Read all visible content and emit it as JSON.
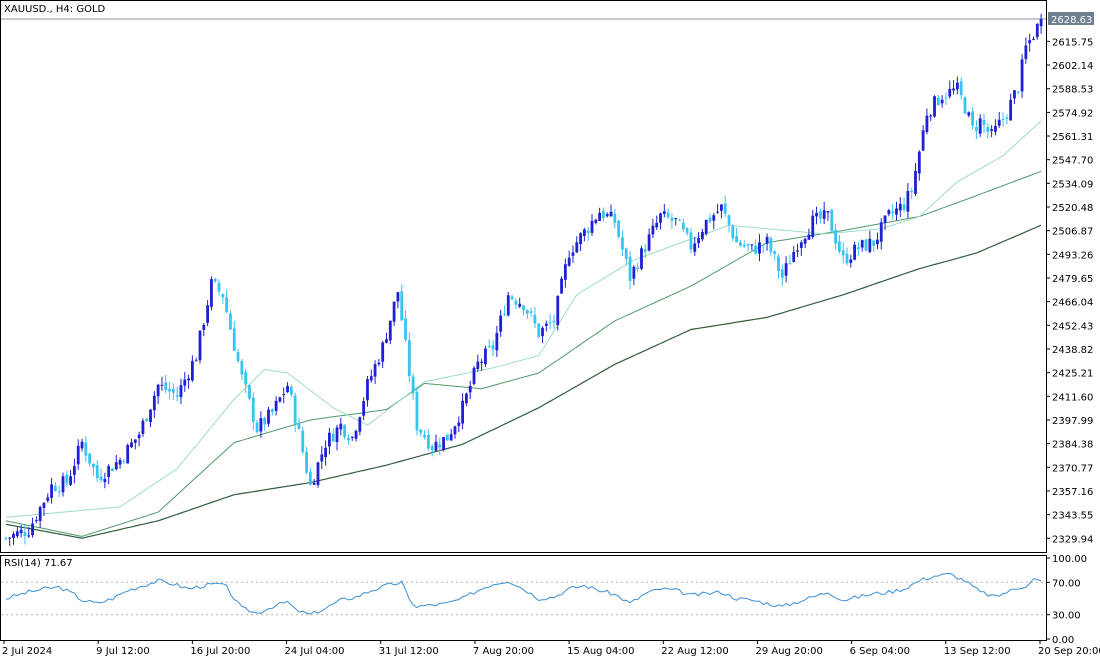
{
  "header": {
    "title": "XAUUSD., H4:  GOLD"
  },
  "price_panel": {
    "current_price_label": "2628.63"
  },
  "rsi_panel": {
    "label": "RSI(14) 71.67"
  },
  "colors": {
    "bull_candle": "#1f1fd4",
    "bear_candle": "#36c5f0",
    "ma_fast": "#9edcc0",
    "ma_mid": "#4f9a6a",
    "ma_slow": "#2f5d3d",
    "rsi_line": "#3a8fd6",
    "grid_frame": "#000000",
    "price_tag_bg": "#6f7f8f"
  },
  "chart_data": [
    {
      "type": "candlestick",
      "symbol": "XAUUSD.",
      "timeframe": "H4",
      "ylim": [
        2323.2,
        2631.5
      ],
      "y_ticks": [
        "2615.75",
        "2602.14",
        "2588.53",
        "2574.92",
        "2561.31",
        "2547.70",
        "2534.09",
        "2520.48",
        "2506.87",
        "2493.26",
        "2479.65",
        "2466.04",
        "2452.43",
        "2438.82",
        "2425.21",
        "2411.60",
        "2397.99",
        "2384.38",
        "2370.77",
        "2357.16",
        "2343.55",
        "2329.94"
      ],
      "x_ticks": [
        "2 Jul 2024",
        "9 Jul 12:00",
        "16 Jul 20:00",
        "24 Jul 04:00",
        "31 Jul 12:00",
        "7 Aug 20:00",
        "15 Aug 04:00",
        "22 Aug 12:00",
        "29 Aug 20:00",
        "6 Sep 04:00",
        "13 Sep 12:00",
        "20 Sep 20:00"
      ],
      "last_price": 2628.63,
      "close_path": [
        [
          0,
          2330
        ],
        [
          6,
          2335
        ],
        [
          12,
          2360
        ],
        [
          16,
          2362
        ],
        [
          20,
          2385
        ],
        [
          24,
          2365
        ],
        [
          30,
          2375
        ],
        [
          35,
          2390
        ],
        [
          40,
          2418
        ],
        [
          45,
          2412
        ],
        [
          50,
          2435
        ],
        [
          54,
          2476
        ],
        [
          57,
          2470
        ],
        [
          62,
          2422
        ],
        [
          66,
          2393
        ],
        [
          70,
          2402
        ],
        [
          74,
          2418
        ],
        [
          76,
          2400
        ],
        [
          80,
          2360
        ],
        [
          84,
          2385
        ],
        [
          88,
          2395
        ],
        [
          91,
          2388
        ],
        [
          95,
          2418
        ],
        [
          99,
          2440
        ],
        [
          103,
          2472
        ],
        [
          105,
          2440
        ],
        [
          108,
          2395
        ],
        [
          112,
          2383
        ],
        [
          116,
          2388
        ],
        [
          120,
          2405
        ],
        [
          124,
          2430
        ],
        [
          128,
          2440
        ],
        [
          132,
          2470
        ],
        [
          136,
          2465
        ],
        [
          140,
          2448
        ],
        [
          144,
          2455
        ],
        [
          148,
          2495
        ],
        [
          152,
          2506
        ],
        [
          156,
          2518
        ],
        [
          160,
          2512
        ],
        [
          164,
          2480
        ],
        [
          168,
          2498
        ],
        [
          172,
          2515
        ],
        [
          176,
          2512
        ],
        [
          180,
          2498
        ],
        [
          184,
          2512
        ],
        [
          188,
          2520
        ],
        [
          192,
          2500
        ],
        [
          196,
          2496
        ],
        [
          200,
          2500
        ],
        [
          204,
          2480
        ],
        [
          208,
          2500
        ],
        [
          212,
          2512
        ],
        [
          216,
          2515
        ],
        [
          220,
          2490
        ],
        [
          224,
          2497
        ],
        [
          228,
          2500
        ],
        [
          232,
          2515
        ],
        [
          236,
          2522
        ],
        [
          238,
          2530
        ],
        [
          242,
          2575
        ],
        [
          246,
          2585
        ],
        [
          250,
          2588
        ],
        [
          252,
          2578
        ],
        [
          254,
          2565
        ],
        [
          256,
          2570
        ],
        [
          259,
          2561
        ],
        [
          263,
          2575
        ],
        [
          266,
          2590
        ],
        [
          268,
          2612
        ],
        [
          271,
          2624
        ],
        [
          272,
          2628.63
        ]
      ],
      "ma_fast_path": [
        [
          0,
          2342
        ],
        [
          30,
          2348
        ],
        [
          45,
          2370
        ],
        [
          60,
          2410
        ],
        [
          68,
          2427
        ],
        [
          74,
          2425
        ],
        [
          86,
          2405
        ],
        [
          95,
          2395
        ],
        [
          110,
          2420
        ],
        [
          128,
          2428
        ],
        [
          140,
          2435
        ],
        [
          150,
          2470
        ],
        [
          165,
          2490
        ],
        [
          190,
          2510
        ],
        [
          215,
          2505
        ],
        [
          230,
          2508
        ],
        [
          240,
          2515
        ],
        [
          250,
          2535
        ],
        [
          262,
          2550
        ],
        [
          272,
          2570
        ]
      ],
      "ma_mid_path": [
        [
          0,
          2340
        ],
        [
          20,
          2331
        ],
        [
          40,
          2345
        ],
        [
          60,
          2385
        ],
        [
          80,
          2398
        ],
        [
          100,
          2404
        ],
        [
          110,
          2419
        ],
        [
          125,
          2416
        ],
        [
          140,
          2425
        ],
        [
          160,
          2455
        ],
        [
          180,
          2475
        ],
        [
          200,
          2500
        ],
        [
          220,
          2507
        ],
        [
          240,
          2515
        ],
        [
          255,
          2527
        ],
        [
          272,
          2541
        ]
      ],
      "ma_slow_path": [
        [
          0,
          2338
        ],
        [
          20,
          2330
        ],
        [
          40,
          2340
        ],
        [
          60,
          2355
        ],
        [
          80,
          2362
        ],
        [
          100,
          2372
        ],
        [
          120,
          2384
        ],
        [
          140,
          2405
        ],
        [
          160,
          2430
        ],
        [
          180,
          2450
        ],
        [
          200,
          2457
        ],
        [
          220,
          2470
        ],
        [
          240,
          2485
        ],
        [
          255,
          2494
        ],
        [
          272,
          2510
        ]
      ]
    },
    {
      "type": "line",
      "name": "RSI(14)",
      "last_value": 71.67,
      "ylim": [
        0,
        100
      ],
      "y_ticks": [
        "100.00",
        "70.00",
        "30.00",
        "0.00"
      ],
      "levels": [
        70,
        30
      ],
      "rsi_path": [
        [
          0,
          50
        ],
        [
          6,
          58
        ],
        [
          10,
          62
        ],
        [
          14,
          64
        ],
        [
          18,
          55
        ],
        [
          20,
          48
        ],
        [
          24,
          44
        ],
        [
          28,
          50
        ],
        [
          32,
          60
        ],
        [
          36,
          66
        ],
        [
          40,
          72
        ],
        [
          44,
          68
        ],
        [
          48,
          62
        ],
        [
          52,
          66
        ],
        [
          56,
          68
        ],
        [
          58,
          64
        ],
        [
          60,
          50
        ],
        [
          62,
          38
        ],
        [
          66,
          32
        ],
        [
          70,
          40
        ],
        [
          74,
          46
        ],
        [
          76,
          36
        ],
        [
          80,
          30
        ],
        [
          84,
          38
        ],
        [
          88,
          48
        ],
        [
          92,
          52
        ],
        [
          96,
          60
        ],
        [
          100,
          66
        ],
        [
          104,
          70
        ],
        [
          106,
          48
        ],
        [
          108,
          40
        ],
        [
          112,
          42
        ],
        [
          116,
          44
        ],
        [
          120,
          50
        ],
        [
          124,
          60
        ],
        [
          128,
          68
        ],
        [
          132,
          72
        ],
        [
          136,
          62
        ],
        [
          140,
          50
        ],
        [
          144,
          52
        ],
        [
          148,
          62
        ],
        [
          152,
          66
        ],
        [
          156,
          60
        ],
        [
          160,
          55
        ],
        [
          164,
          44
        ],
        [
          168,
          56
        ],
        [
          172,
          62
        ],
        [
          176,
          60
        ],
        [
          180,
          54
        ],
        [
          184,
          56
        ],
        [
          188,
          58
        ],
        [
          192,
          50
        ],
        [
          196,
          48
        ],
        [
          200,
          44
        ],
        [
          204,
          40
        ],
        [
          208,
          46
        ],
        [
          212,
          52
        ],
        [
          216,
          58
        ],
        [
          220,
          48
        ],
        [
          224,
          52
        ],
        [
          228,
          56
        ],
        [
          232,
          58
        ],
        [
          236,
          62
        ],
        [
          240,
          72
        ],
        [
          244,
          78
        ],
        [
          248,
          80
        ],
        [
          252,
          72
        ],
        [
          256,
          58
        ],
        [
          260,
          52
        ],
        [
          264,
          60
        ],
        [
          268,
          66
        ],
        [
          270,
          74
        ],
        [
          272,
          71.67
        ]
      ]
    }
  ]
}
